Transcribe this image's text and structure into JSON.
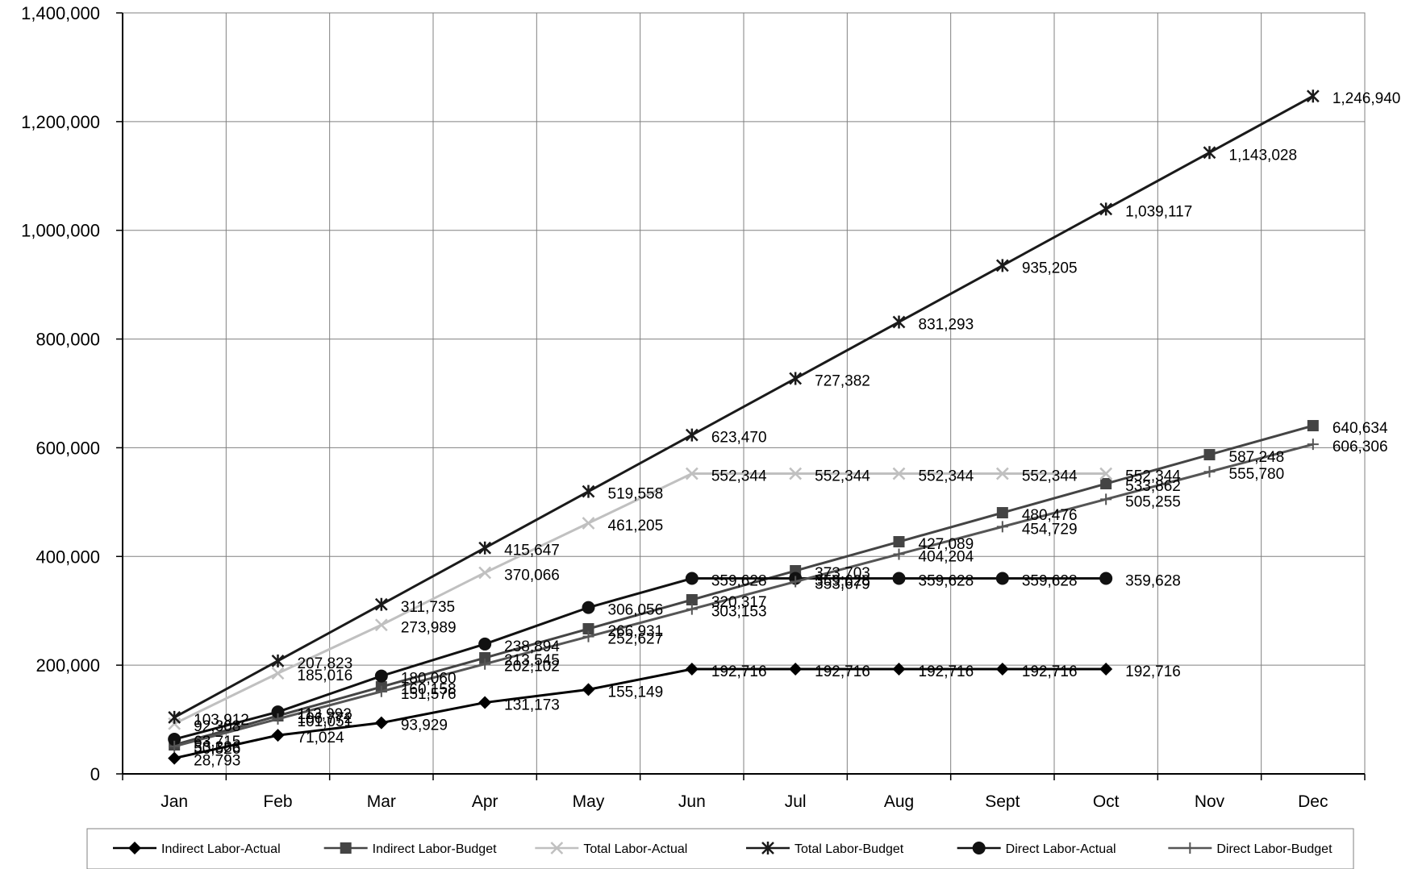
{
  "chart_data": {
    "type": "line",
    "title": "",
    "xlabel": "",
    "ylabel": "",
    "categories": [
      "Jan",
      "Feb",
      "Mar",
      "Apr",
      "May",
      "Jun",
      "Jul",
      "Aug",
      "Sept",
      "Oct",
      "Nov",
      "Dec"
    ],
    "y_ticks": [
      "0",
      "200,000",
      "400,000",
      "600,000",
      "800,000",
      "1,000,000",
      "1,200,000",
      "1,400,000"
    ],
    "ylim": [
      0,
      1400000
    ],
    "grid": true,
    "legend_position": "bottom",
    "series": [
      {
        "name": "Indirect Labor-Actual",
        "color": "#000000",
        "marker": "diamond",
        "values": [
          28793,
          71024,
          93929,
          131173,
          155149,
          192716,
          192716,
          192716,
          192716,
          192716,
          null,
          null
        ],
        "labels": [
          "28,793",
          "71,024",
          "93,929",
          "131,173",
          "155,149",
          "192,716",
          "192,716",
          "192,716",
          "192,716",
          "192,716",
          "",
          ""
        ]
      },
      {
        "name": "Indirect Labor-Budget",
        "color": "#444444",
        "marker": "square",
        "values": [
          53386,
          106772,
          160158,
          213545,
          266931,
          320317,
          373703,
          427089,
          480476,
          533862,
          587248,
          640634
        ],
        "labels": [
          "53,386",
          "106,772",
          "160,158",
          "213,545",
          "266,931",
          "320,317",
          "373,703",
          "427,089",
          "480,476",
          "533,862",
          "587,248",
          "640,634"
        ]
      },
      {
        "name": "Total Labor-Actual",
        "color": "#c0c0c0",
        "marker": "x",
        "values": [
          92308,
          185016,
          273989,
          370066,
          461205,
          552344,
          552344,
          552344,
          552344,
          552344,
          null,
          null
        ],
        "labels": [
          "92,308",
          "185,016",
          "273,989",
          "370,066",
          "461,205",
          "552,344",
          "552,344",
          "552,344",
          "552,344",
          "552,344",
          "",
          ""
        ]
      },
      {
        "name": "Total Labor-Budget",
        "color": "#1a1a1a",
        "marker": "star",
        "values": [
          103912,
          207823,
          311735,
          415647,
          519558,
          623470,
          727382,
          831293,
          935205,
          1039117,
          1143028,
          1246940
        ],
        "labels": [
          "103,912",
          "207,823",
          "311,735",
          "415,647",
          "519,558",
          "623,470",
          "727,382",
          "831,293",
          "935,205",
          "1,039,117",
          "1,143,028",
          "1,246,940"
        ]
      },
      {
        "name": "Direct Labor-Actual",
        "color": "#111111",
        "marker": "circle",
        "values": [
          63715,
          113992,
          180060,
          238894,
          306056,
          359628,
          359628,
          359628,
          359628,
          359628,
          null,
          null
        ],
        "labels": [
          "63,715",
          "113,992",
          "180,060",
          "238,894",
          "306,056",
          "359,628",
          "359,628",
          "359,628",
          "359,628",
          "359,628",
          "",
          ""
        ]
      },
      {
        "name": "Direct Labor-Budget",
        "color": "#555555",
        "marker": "plus",
        "values": [
          50526,
          101051,
          151576,
          202102,
          252627,
          303153,
          353679,
          404204,
          454729,
          505255,
          555780,
          606306
        ],
        "labels": [
          "50,526",
          "101,051",
          "151,576",
          "202,102",
          "252,627",
          "303,153",
          "353,679",
          "404,204",
          "454,729",
          "505,255",
          "555,780",
          "606,306"
        ]
      }
    ]
  }
}
